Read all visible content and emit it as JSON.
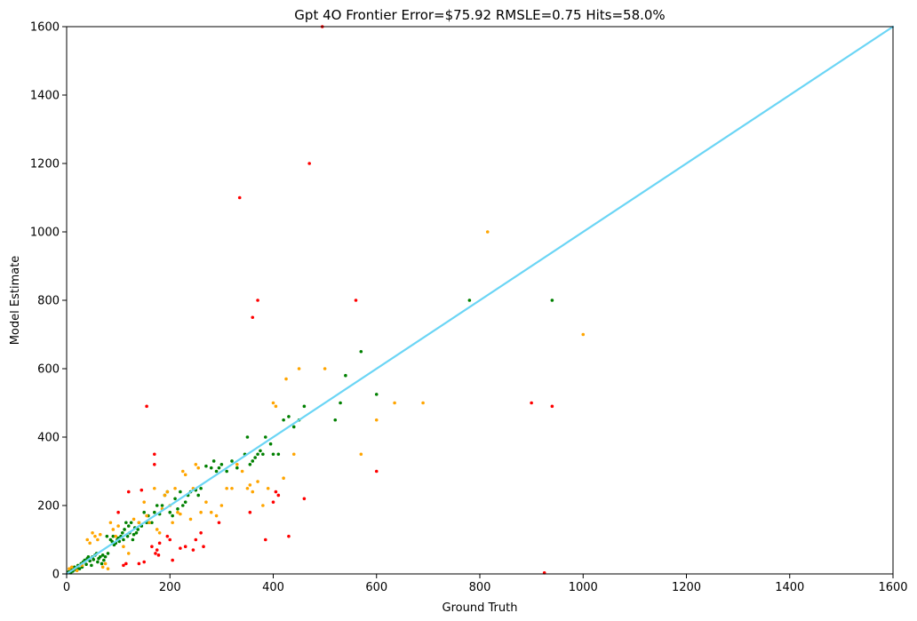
{
  "chart_data": {
    "type": "scatter",
    "title": "Gpt 4O Frontier Error=$75.92 RMSLE=0.75 Hits=58.0%",
    "xlabel": "Ground Truth",
    "ylabel": "Model Estimate",
    "xlim": [
      0,
      1600
    ],
    "ylim": [
      0,
      1600
    ],
    "xticks": [
      0,
      200,
      400,
      600,
      800,
      1000,
      1200,
      1400,
      1600
    ],
    "yticks": [
      0,
      200,
      400,
      600,
      800,
      1000,
      1200,
      1400,
      1600
    ],
    "grid": false,
    "legend": "none",
    "reference_line": {
      "from": [
        0,
        0
      ],
      "to": [
        1600,
        1600
      ],
      "color": "#6bd5f5"
    },
    "colors": {
      "green": "#008000",
      "orange": "#ffa500",
      "red": "#ff0000"
    },
    "points": {
      "green": [
        [
          3,
          5
        ],
        [
          6,
          10
        ],
        [
          8,
          3
        ],
        [
          10,
          15
        ],
        [
          12,
          8
        ],
        [
          15,
          20
        ],
        [
          18,
          12
        ],
        [
          20,
          18
        ],
        [
          22,
          25
        ],
        [
          25,
          15
        ],
        [
          28,
          30
        ],
        [
          30,
          20
        ],
        [
          32,
          35
        ],
        [
          35,
          40
        ],
        [
          38,
          28
        ],
        [
          40,
          45
        ],
        [
          42,
          50
        ],
        [
          45,
          38
        ],
        [
          48,
          25
        ],
        [
          50,
          50
        ],
        [
          52,
          42
        ],
        [
          55,
          55
        ],
        [
          58,
          60
        ],
        [
          60,
          35
        ],
        [
          62,
          45
        ],
        [
          65,
          50
        ],
        [
          68,
          30
        ],
        [
          70,
          55
        ],
        [
          72,
          40
        ],
        [
          75,
          50
        ],
        [
          78,
          110
        ],
        [
          80,
          60
        ],
        [
          85,
          100
        ],
        [
          88,
          95
        ],
        [
          90,
          110
        ],
        [
          92,
          85
        ],
        [
          95,
          90
        ],
        [
          98,
          100
        ],
        [
          100,
          105
        ],
        [
          102,
          95
        ],
        [
          105,
          110
        ],
        [
          108,
          120
        ],
        [
          110,
          100
        ],
        [
          112,
          130
        ],
        [
          115,
          150
        ],
        [
          118,
          110
        ],
        [
          120,
          140
        ],
        [
          122,
          120
        ],
        [
          125,
          150
        ],
        [
          128,
          100
        ],
        [
          130,
          115
        ],
        [
          132,
          135
        ],
        [
          135,
          120
        ],
        [
          138,
          130
        ],
        [
          140,
          150
        ],
        [
          145,
          140
        ],
        [
          150,
          180
        ],
        [
          155,
          150
        ],
        [
          158,
          170
        ],
        [
          160,
          150
        ],
        [
          165,
          150
        ],
        [
          170,
          180
        ],
        [
          175,
          200
        ],
        [
          180,
          175
        ],
        [
          185,
          200
        ],
        [
          190,
          230
        ],
        [
          195,
          240
        ],
        [
          200,
          180
        ],
        [
          205,
          170
        ],
        [
          210,
          220
        ],
        [
          215,
          190
        ],
        [
          220,
          240
        ],
        [
          225,
          200
        ],
        [
          230,
          210
        ],
        [
          235,
          230
        ],
        [
          240,
          240
        ],
        [
          250,
          245
        ],
        [
          255,
          230
        ],
        [
          260,
          250
        ],
        [
          270,
          315
        ],
        [
          280,
          310
        ],
        [
          285,
          330
        ],
        [
          290,
          300
        ],
        [
          295,
          310
        ],
        [
          300,
          320
        ],
        [
          310,
          300
        ],
        [
          320,
          330
        ],
        [
          330,
          310
        ],
        [
          345,
          350
        ],
        [
          350,
          400
        ],
        [
          355,
          320
        ],
        [
          360,
          330
        ],
        [
          365,
          340
        ],
        [
          370,
          350
        ],
        [
          375,
          360
        ],
        [
          380,
          350
        ],
        [
          385,
          400
        ],
        [
          395,
          380
        ],
        [
          400,
          350
        ],
        [
          410,
          350
        ],
        [
          420,
          450
        ],
        [
          430,
          460
        ],
        [
          440,
          430
        ],
        [
          450,
          450
        ],
        [
          460,
          490
        ],
        [
          520,
          450
        ],
        [
          530,
          500
        ],
        [
          540,
          580
        ],
        [
          570,
          650
        ],
        [
          600,
          525
        ],
        [
          780,
          800
        ],
        [
          940,
          800
        ]
      ],
      "orange": [
        [
          5,
          15
        ],
        [
          10,
          20
        ],
        [
          20,
          10
        ],
        [
          30,
          25
        ],
        [
          40,
          100
        ],
        [
          45,
          90
        ],
        [
          50,
          120
        ],
        [
          55,
          110
        ],
        [
          60,
          100
        ],
        [
          65,
          115
        ],
        [
          70,
          20
        ],
        [
          75,
          30
        ],
        [
          80,
          15
        ],
        [
          85,
          150
        ],
        [
          90,
          130
        ],
        [
          95,
          110
        ],
        [
          100,
          140
        ],
        [
          110,
          80
        ],
        [
          120,
          60
        ],
        [
          130,
          160
        ],
        [
          140,
          150
        ],
        [
          150,
          210
        ],
        [
          155,
          170
        ],
        [
          160,
          150
        ],
        [
          170,
          250
        ],
        [
          175,
          130
        ],
        [
          180,
          120
        ],
        [
          185,
          190
        ],
        [
          190,
          230
        ],
        [
          195,
          240
        ],
        [
          200,
          200
        ],
        [
          205,
          150
        ],
        [
          210,
          250
        ],
        [
          215,
          180
        ],
        [
          220,
          175
        ],
        [
          225,
          300
        ],
        [
          230,
          290
        ],
        [
          240,
          160
        ],
        [
          245,
          250
        ],
        [
          250,
          320
        ],
        [
          255,
          310
        ],
        [
          260,
          180
        ],
        [
          270,
          210
        ],
        [
          280,
          180
        ],
        [
          290,
          170
        ],
        [
          300,
          200
        ],
        [
          310,
          250
        ],
        [
          320,
          250
        ],
        [
          330,
          320
        ],
        [
          340,
          300
        ],
        [
          350,
          250
        ],
        [
          355,
          260
        ],
        [
          360,
          240
        ],
        [
          370,
          270
        ],
        [
          380,
          200
        ],
        [
          390,
          250
        ],
        [
          400,
          500
        ],
        [
          405,
          490
        ],
        [
          420,
          280
        ],
        [
          425,
          570
        ],
        [
          440,
          350
        ],
        [
          450,
          600
        ],
        [
          500,
          600
        ],
        [
          570,
          350
        ],
        [
          600,
          450
        ],
        [
          635,
          500
        ],
        [
          690,
          500
        ],
        [
          815,
          1000
        ],
        [
          1000,
          700
        ]
      ],
      "red": [
        [
          100,
          180
        ],
        [
          110,
          25
        ],
        [
          115,
          30
        ],
        [
          120,
          240
        ],
        [
          140,
          30
        ],
        [
          145,
          245
        ],
        [
          150,
          35
        ],
        [
          155,
          490
        ],
        [
          165,
          80
        ],
        [
          170,
          350
        ],
        [
          170,
          320
        ],
        [
          172,
          60
        ],
        [
          175,
          70
        ],
        [
          178,
          55
        ],
        [
          180,
          90
        ],
        [
          195,
          110
        ],
        [
          200,
          100
        ],
        [
          205,
          40
        ],
        [
          220,
          75
        ],
        [
          230,
          80
        ],
        [
          245,
          70
        ],
        [
          250,
          100
        ],
        [
          260,
          120
        ],
        [
          265,
          80
        ],
        [
          295,
          150
        ],
        [
          335,
          1100
        ],
        [
          355,
          180
        ],
        [
          360,
          750
        ],
        [
          370,
          800
        ],
        [
          385,
          100
        ],
        [
          400,
          210
        ],
        [
          405,
          240
        ],
        [
          410,
          230
        ],
        [
          430,
          110
        ],
        [
          460,
          220
        ],
        [
          470,
          1200
        ],
        [
          495,
          1600
        ],
        [
          560,
          800
        ],
        [
          600,
          300
        ],
        [
          900,
          500
        ],
        [
          925,
          3
        ],
        [
          940,
          490
        ]
      ]
    }
  }
}
